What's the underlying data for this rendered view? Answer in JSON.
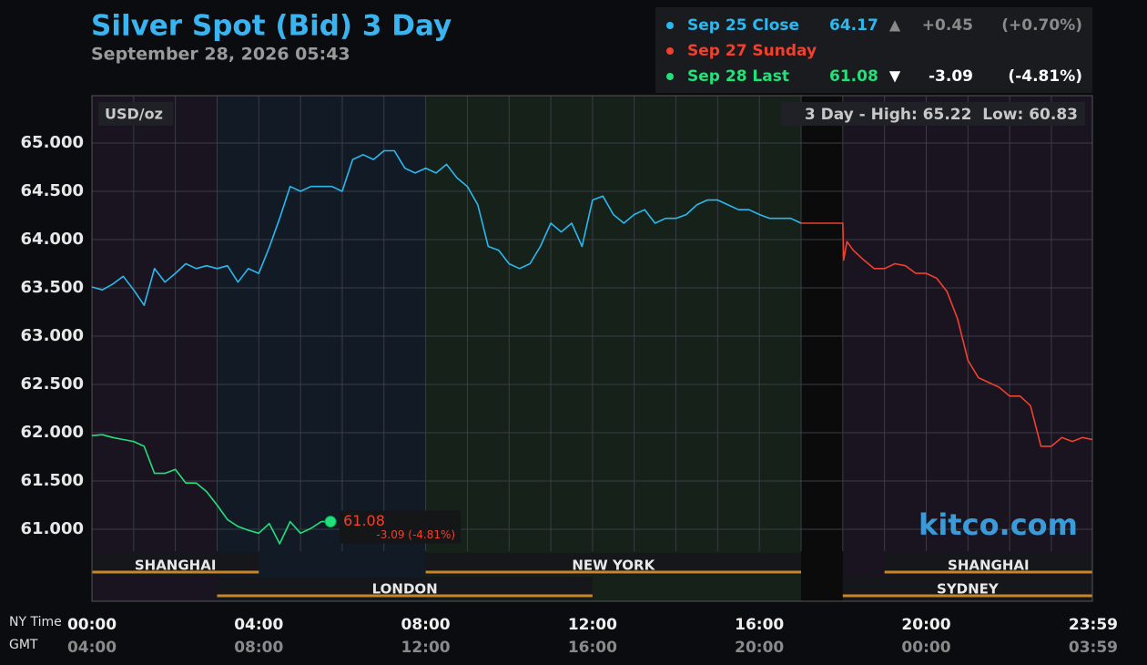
{
  "chart_data": {
    "type": "line",
    "title": "Silver Spot (Bid) 3 Day",
    "subtitle": "September 28, 2026 05:43",
    "y_unit": "USD/oz",
    "high_low": "3 Day - High: 65.22  Low: 60.83",
    "watermark": "kitco.com",
    "x_axis_label": "NY Time",
    "x2_axis_label": "GMT",
    "xlim": [
      0,
      23.983
    ],
    "xticks": [
      {
        "value": 0,
        "label": "00:00"
      },
      {
        "value": 4,
        "label": "04:00"
      },
      {
        "value": 8,
        "label": "08:00"
      },
      {
        "value": 12,
        "label": "12:00"
      },
      {
        "value": 16,
        "label": "16:00"
      },
      {
        "value": 20,
        "label": "20:00"
      },
      {
        "value": 23.983,
        "label": "23:59"
      }
    ],
    "x2ticks": [
      {
        "value": 0,
        "label": "04:00"
      },
      {
        "value": 4,
        "label": "08:00"
      },
      {
        "value": 8,
        "label": "12:00"
      },
      {
        "value": 12,
        "label": "16:00"
      },
      {
        "value": 16,
        "label": "20:00"
      },
      {
        "value": 20,
        "label": "00:00"
      },
      {
        "value": 23.983,
        "label": "03:59"
      }
    ],
    "xgrid": [
      1,
      2,
      3,
      4,
      5,
      6,
      7,
      8,
      9,
      10,
      11,
      12,
      13,
      14,
      15,
      16,
      17,
      18,
      19,
      20,
      21,
      22,
      23
    ],
    "ylim": [
      60.774,
      65.491
    ],
    "yticks": [
      {
        "value": 61,
        "label": "61.000"
      },
      {
        "value": 61.5,
        "label": "61.500"
      },
      {
        "value": 62,
        "label": "62.000"
      },
      {
        "value": 62.5,
        "label": "62.500"
      },
      {
        "value": 63,
        "label": "63.000"
      },
      {
        "value": 63.5,
        "label": "63.500"
      },
      {
        "value": 64,
        "label": "64.000"
      },
      {
        "value": 64.5,
        "label": "64.500"
      },
      {
        "value": 65,
        "label": "65.000"
      }
    ],
    "grid": true,
    "backgrounds": [
      {
        "start": 0,
        "end": 3,
        "color": "#1a1420"
      },
      {
        "start": 3,
        "end": 8,
        "color": "#121a26"
      },
      {
        "start": 8,
        "end": 17,
        "color": "#16211a"
      },
      {
        "start": 17,
        "end": 18,
        "color": "#0b0b0b"
      },
      {
        "start": 18,
        "end": 23.983,
        "color": "#1a1420"
      }
    ],
    "sessions": [
      {
        "name": "SHANGHAI",
        "start": 0,
        "end": 4,
        "row": 1
      },
      {
        "name": "NEW YORK",
        "start": 8,
        "end": 17,
        "row": 1
      },
      {
        "name": "SHANGHAI",
        "start": 19,
        "end": 23.983,
        "row": 1
      },
      {
        "name": "LONDON",
        "start": 3,
        "end": 12,
        "row": 2
      },
      {
        "name": "SYDNEY",
        "start": 18,
        "end": 23.983,
        "row": 2
      }
    ],
    "series": [
      {
        "name": "Sep 25 Close",
        "color": "#2bb8ee",
        "price": "64.17",
        "arrow": "▲",
        "change": "+0.45",
        "change_pct": "(+0.70%)",
        "x": [
          0,
          0.25,
          0.5,
          0.75,
          1,
          1.25,
          1.5,
          1.75,
          2,
          2.25,
          2.5,
          2.75,
          3,
          3.25,
          3.5,
          3.75,
          4,
          4.25,
          4.5,
          4.75,
          5,
          5.25,
          5.5,
          5.75,
          6,
          6.25,
          6.5,
          6.75,
          7,
          7.25,
          7.5,
          7.75,
          8,
          8.25,
          8.5,
          8.75,
          9,
          9.25,
          9.5,
          9.75,
          10,
          10.25,
          10.5,
          10.75,
          11,
          11.25,
          11.5,
          11.75,
          12,
          12.25,
          12.5,
          12.75,
          13,
          13.25,
          13.5,
          13.75,
          14,
          14.25,
          14.5,
          14.75,
          15,
          15.25,
          15.5,
          15.75,
          16,
          16.25,
          16.5,
          16.75,
          17
        ],
        "values": [
          63.51,
          63.48,
          63.54,
          63.62,
          63.48,
          63.32,
          63.7,
          63.56,
          63.65,
          63.75,
          63.7,
          63.73,
          63.7,
          63.73,
          63.56,
          63.7,
          63.65,
          63.92,
          64.22,
          64.55,
          64.5,
          64.55,
          64.55,
          64.55,
          64.5,
          64.83,
          64.88,
          64.83,
          64.92,
          64.92,
          64.74,
          64.69,
          64.74,
          64.69,
          64.78,
          64.64,
          64.55,
          64.36,
          63.93,
          63.89,
          63.75,
          63.7,
          63.75,
          63.93,
          64.17,
          64.08,
          64.17,
          63.93,
          64.41,
          64.45,
          64.26,
          64.17,
          64.26,
          64.31,
          64.17,
          64.22,
          64.22,
          64.26,
          64.36,
          64.41,
          64.41,
          64.36,
          64.31,
          64.31,
          64.26,
          64.22,
          64.22,
          64.22,
          64.17
        ]
      },
      {
        "name": "Sep 27 Sunday",
        "color": "#f0402e",
        "x": [
          17,
          18,
          18.02,
          18.1,
          18.25,
          18.5,
          18.75,
          19,
          19.25,
          19.5,
          19.75,
          20,
          20.25,
          20.5,
          20.75,
          21,
          21.25,
          21.5,
          21.75,
          22,
          22.25,
          22.5,
          22.75,
          23,
          23.25,
          23.5,
          23.75,
          23.983
        ],
        "values": [
          64.17,
          64.17,
          63.79,
          63.98,
          63.89,
          63.79,
          63.7,
          63.7,
          63.75,
          63.73,
          63.65,
          63.65,
          63.6,
          63.46,
          63.18,
          62.75,
          62.57,
          62.52,
          62.47,
          62.38,
          62.38,
          62.28,
          61.86,
          61.86,
          61.95,
          61.91,
          61.95,
          61.93
        ]
      },
      {
        "name": "Sep 28 Last",
        "color": "#22e07a",
        "price": "61.08",
        "arrow": "▼",
        "change": "-3.09",
        "change_pct": "(-4.81%)",
        "last_change": "-3.09 (-4.81%)",
        "x": [
          0,
          0.25,
          0.5,
          0.75,
          1,
          1.25,
          1.5,
          1.75,
          2,
          2.25,
          2.5,
          2.75,
          3,
          3.25,
          3.5,
          3.75,
          4,
          4.25,
          4.5,
          4.75,
          5,
          5.25,
          5.5,
          5.72
        ],
        "values": [
          61.97,
          61.98,
          61.95,
          61.93,
          61.91,
          61.86,
          61.58,
          61.58,
          61.62,
          61.48,
          61.48,
          61.39,
          61.25,
          61.1,
          61.03,
          60.99,
          60.96,
          61.06,
          60.85,
          61.08,
          60.96,
          61.01,
          61.08,
          61.08
        ]
      }
    ]
  }
}
